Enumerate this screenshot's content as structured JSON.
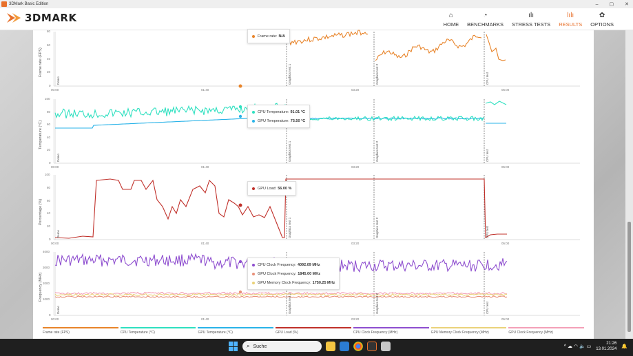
{
  "window": {
    "title": "3DMark Basic Edition",
    "controls": [
      "–",
      "▢",
      "✕"
    ]
  },
  "brand": {
    "logo_text": "3DMARK",
    "accent": "#e8702a"
  },
  "nav": [
    {
      "label": "HOME",
      "icon": "home-icon",
      "glyph": "⌂",
      "active": false
    },
    {
      "label": "BENCHMARKS",
      "icon": "gauge-icon",
      "glyph": "◔",
      "active": false
    },
    {
      "label": "STRESS TESTS",
      "icon": "bar-chart-icon",
      "glyph": "ılı",
      "active": false
    },
    {
      "label": "RESULTS",
      "icon": "results-bars-icon",
      "glyph": "lılı",
      "active": true
    },
    {
      "label": "OPTIONS",
      "icon": "gear-icon",
      "glyph": "✿",
      "active": false
    }
  ],
  "axis": {
    "x_ticks": [
      "00:00",
      "01:40",
      "03:20",
      "05:00"
    ]
  },
  "charts": [
    {
      "ylabel": "Frame rate (FPS)",
      "yticks": [
        "80",
        "60",
        "40",
        "20",
        "0"
      ]
    },
    {
      "ylabel": "Temperature (°C)",
      "yticks": [
        "100",
        "80",
        "60",
        "40",
        "20",
        "0"
      ]
    },
    {
      "ylabel": "Percentage (%)",
      "yticks": [
        "100",
        "80",
        "60",
        "40",
        "20",
        "0"
      ]
    },
    {
      "ylabel": "Frequency (MHz)",
      "yticks": [
        "4000",
        "3000",
        "2000",
        "1000",
        "0"
      ]
    }
  ],
  "markers": [
    "Demo",
    "Graphics test 1",
    "Graphics test 2",
    "CPU test"
  ],
  "tooltips": {
    "fps": [
      {
        "label": "Frame rate:",
        "value": "N/A",
        "color": "#e8842a"
      }
    ],
    "temp": [
      {
        "label": "CPU Temperature:",
        "value": "91.01 °C",
        "color": "#2ee0c0"
      },
      {
        "label": "GPU Temperature:",
        "value": "75.50 °C",
        "color": "#29b3e8"
      }
    ],
    "load": [
      {
        "label": "GPU Load:",
        "value": "56.00 %",
        "color": "#c0302a"
      }
    ],
    "freq": [
      {
        "label": "CPU Clock Frequency:",
        "value": "4092.09 MHz",
        "color": "#8e4ecf"
      },
      {
        "label": "GPU Clock Frequency:",
        "value": "1845.00 MHz",
        "color": "#e8907a"
      },
      {
        "label": "GPU Memory Clock Frequency:",
        "value": "1750.25 MHz",
        "color": "#ead27a"
      }
    ]
  },
  "legend": [
    {
      "label": "Frame rate (FPS)",
      "color": "#e8842a"
    },
    {
      "label": "CPU Temperature (°C)",
      "color": "#2ee0c0"
    },
    {
      "label": "GPU Temperature (°C)",
      "color": "#29b3e8"
    },
    {
      "label": "GPU Load (%)",
      "color": "#c0302a"
    },
    {
      "label": "CPU Clock Frequency (MHz)",
      "color": "#8e4ecf"
    },
    {
      "label": "GPU Memory Clock Frequency (MHz)",
      "color": "#ead27a"
    },
    {
      "label": "GPU Clock Frequency (MHz)",
      "color": "#f4a0b8"
    }
  ],
  "taskbar": {
    "search_placeholder": "Suche",
    "time": "21:26",
    "date": "13.01.2024",
    "sys": "^ ☁ ◠ 🔈 ▭"
  }
}
